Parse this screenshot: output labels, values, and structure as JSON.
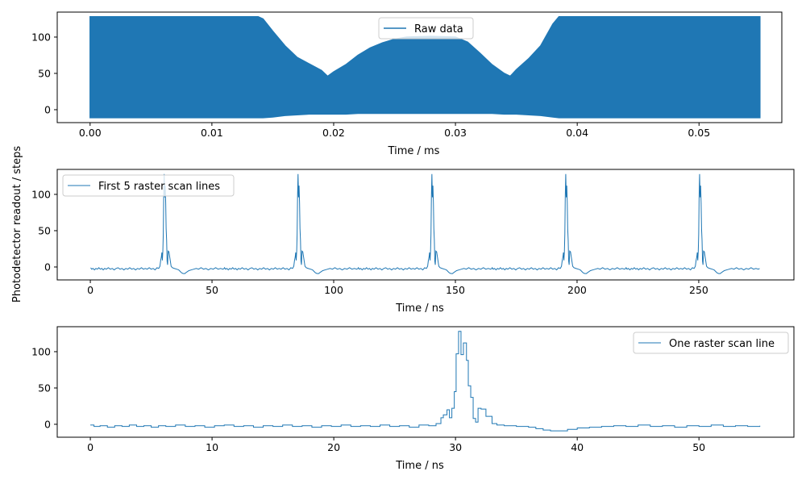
{
  "ylabel": "Photodetector readout / steps",
  "colors": {
    "series": "#1f77b4",
    "axes": "#000000",
    "legend_border": "#cccccc"
  },
  "chart_data": [
    {
      "type": "line",
      "xlabel": "Time / ms",
      "legend": {
        "label": "Raw data",
        "placement": "upper-center"
      },
      "xlim": [
        -0.0027,
        0.0568
      ],
      "ylim": [
        -17.8,
        134.4
      ],
      "xticks": [
        0,
        0.01,
        0.02,
        0.03,
        0.04,
        0.05
      ],
      "xtick_labels": [
        "0.00",
        "0.01",
        "0.02",
        "0.03",
        "0.04",
        "0.05"
      ],
      "yticks": [
        0,
        50,
        100
      ],
      "ytick_labels": [
        "0",
        "50",
        "100"
      ],
      "note_render": "dense oscillation; drawn as envelope",
      "envelope_t": [
        0,
        0.0138,
        0.0142,
        0.015,
        0.016,
        0.017,
        0.018,
        0.019,
        0.0195,
        0.02,
        0.021,
        0.022,
        0.023,
        0.024,
        0.025,
        0.026,
        0.028,
        0.03,
        0.031,
        0.032,
        0.033,
        0.034,
        0.0345,
        0.035,
        0.036,
        0.037,
        0.038,
        0.0385,
        0.055
      ],
      "envelope_upper": [
        128,
        128,
        125,
        108,
        88,
        72,
        63,
        54,
        46,
        52,
        62,
        75,
        85,
        92,
        97,
        100,
        101,
        100,
        93,
        78,
        62,
        50,
        46,
        55,
        70,
        88,
        118,
        128,
        128
      ],
      "envelope_lower": [
        -11,
        -11,
        -11,
        -10,
        -8,
        -7,
        -6,
        -6,
        -6,
        -6,
        -6,
        -5,
        -5,
        -5,
        -5,
        -5,
        -5,
        -5,
        -5,
        -5,
        -5,
        -6,
        -6,
        -6,
        -7,
        -8,
        -10,
        -11,
        -11
      ]
    },
    {
      "type": "line",
      "xlabel": "Time / ns",
      "legend": {
        "label": "First 5 raster scan lines",
        "placement": "upper-left"
      },
      "xlim": [
        -13.6,
        289.1
      ],
      "ylim": [
        -17.8,
        134.4
      ],
      "xticks": [
        0,
        50,
        100,
        150,
        200,
        250
      ],
      "xtick_labels": [
        "0",
        "50",
        "100",
        "150",
        "200",
        "250"
      ],
      "yticks": [
        0,
        50,
        100
      ],
      "ytick_labels": [
        "0",
        "50",
        "100"
      ],
      "repeat_of_line_period": 55,
      "repeat_count": 5
    },
    {
      "type": "step",
      "xlabel": "Time / ns",
      "legend": {
        "label": "One raster scan line",
        "placement": "upper-right"
      },
      "xlim": [
        -2.72,
        57.8
      ],
      "ylim": [
        -17.8,
        134.4
      ],
      "xticks": [
        0,
        10,
        20,
        30,
        40,
        50
      ],
      "xtick_labels": [
        "0",
        "10",
        "20",
        "30",
        "40",
        "50"
      ],
      "yticks": [
        0,
        50,
        100
      ],
      "ytick_labels": [
        "0",
        "50",
        "100"
      ],
      "t": [
        0,
        0.3,
        0.8,
        1.4,
        2.0,
        2.6,
        3.2,
        3.8,
        4.4,
        5.0,
        5.6,
        6.2,
        7.0,
        7.8,
        8.6,
        9.4,
        10.2,
        11.0,
        11.8,
        12.6,
        13.4,
        14.2,
        15.0,
        15.8,
        16.6,
        17.4,
        18.2,
        19.0,
        19.8,
        20.6,
        21.4,
        22.2,
        23.0,
        23.8,
        24.6,
        25.4,
        26.2,
        27.0,
        27.8,
        28.4,
        28.8,
        29.0,
        29.3,
        29.5,
        29.7,
        29.9,
        30.05,
        30.25,
        30.45,
        30.65,
        30.9,
        31.05,
        31.25,
        31.45,
        31.65,
        31.85,
        32.1,
        32.5,
        33.0,
        33.4,
        34.0,
        35.0,
        36.0,
        36.6,
        37.2,
        37.8,
        38.5,
        39.2,
        40.0,
        41.0,
        42.0,
        43.0,
        44.0,
        45.0,
        46.0,
        47.0,
        48.0,
        49.0,
        50.0,
        51.0,
        52.0,
        53.0,
        54.0,
        55.0
      ],
      "v": [
        -1,
        -3,
        -2,
        -4,
        -2,
        -3,
        -1,
        -3,
        -2,
        -4,
        -2,
        -3,
        -1,
        -3,
        -2,
        -4,
        -2,
        -1,
        -3,
        -2,
        -4,
        -2,
        -3,
        -1,
        -3,
        -2,
        -4,
        -2,
        -3,
        -1,
        -3,
        -2,
        -3,
        -1,
        -3,
        -2,
        -4,
        -1,
        -2,
        1,
        9,
        13,
        20,
        9,
        22,
        45,
        97,
        128,
        96,
        112,
        88,
        53,
        37,
        8,
        3,
        22,
        21,
        11,
        1,
        -1,
        -2,
        -3,
        -4,
        -6,
        -8,
        -9,
        -9,
        -7,
        -5,
        -4,
        -3,
        -2,
        -3,
        -1,
        -3,
        -2,
        -4,
        -2,
        -3,
        -1,
        -3,
        -2,
        -3,
        -2
      ]
    }
  ]
}
